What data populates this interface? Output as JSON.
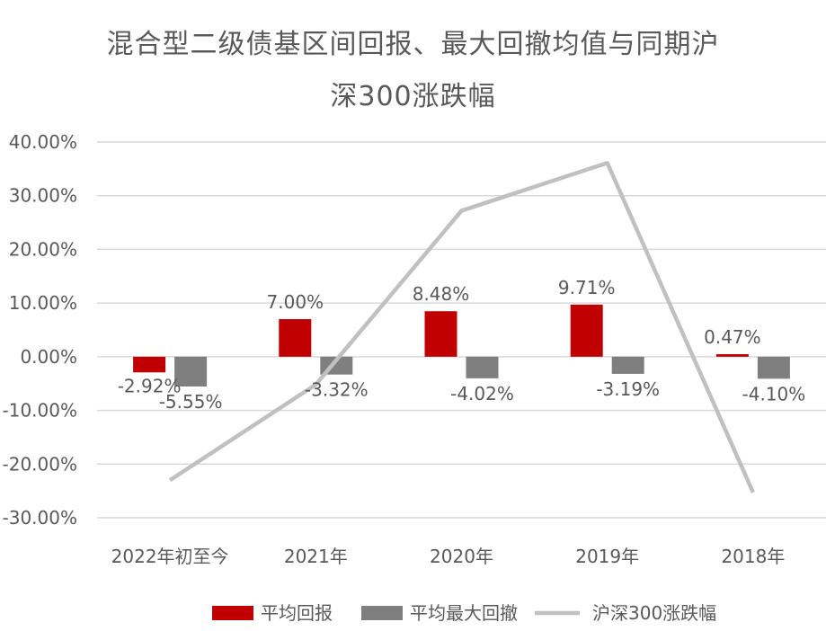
{
  "title_line1": "混合型二级债基区间回报、最大回撤均值与同期沪",
  "title_line2": "深300涨跌幅",
  "chart_data": {
    "type": "bar",
    "categories": [
      "2022年初至今",
      "2021年",
      "2020年",
      "2019年",
      "2018年"
    ],
    "series": [
      {
        "name": "平均回报",
        "kind": "bar",
        "color": "#c00000",
        "values": [
          -2.92,
          7.0,
          8.48,
          9.71,
          0.47
        ],
        "labels": [
          "-2.92%",
          "7.00%",
          "8.48%",
          "9.71%",
          "0.47%"
        ]
      },
      {
        "name": "平均最大回撤",
        "kind": "bar",
        "color": "#7f7f7f",
        "values": [
          -5.55,
          -3.32,
          -4.02,
          -3.19,
          -4.1
        ],
        "labels": [
          "-5.55%",
          "-3.32%",
          "-4.02%",
          "-3.19%",
          "-4.10%"
        ]
      },
      {
        "name": "沪深300涨跌幅",
        "kind": "line",
        "color": "#c0c0c0",
        "values": [
          -23.0,
          -5.2,
          27.2,
          36.1,
          -25.3
        ]
      }
    ],
    "y_ticks": [
      "40.00%",
      "30.00%",
      "20.00%",
      "10.00%",
      "0.00%",
      "-10.00%",
      "-20.00%",
      "-30.00%"
    ],
    "ylim": [
      -30,
      40
    ],
    "grid": true,
    "legend_position": "bottom"
  }
}
